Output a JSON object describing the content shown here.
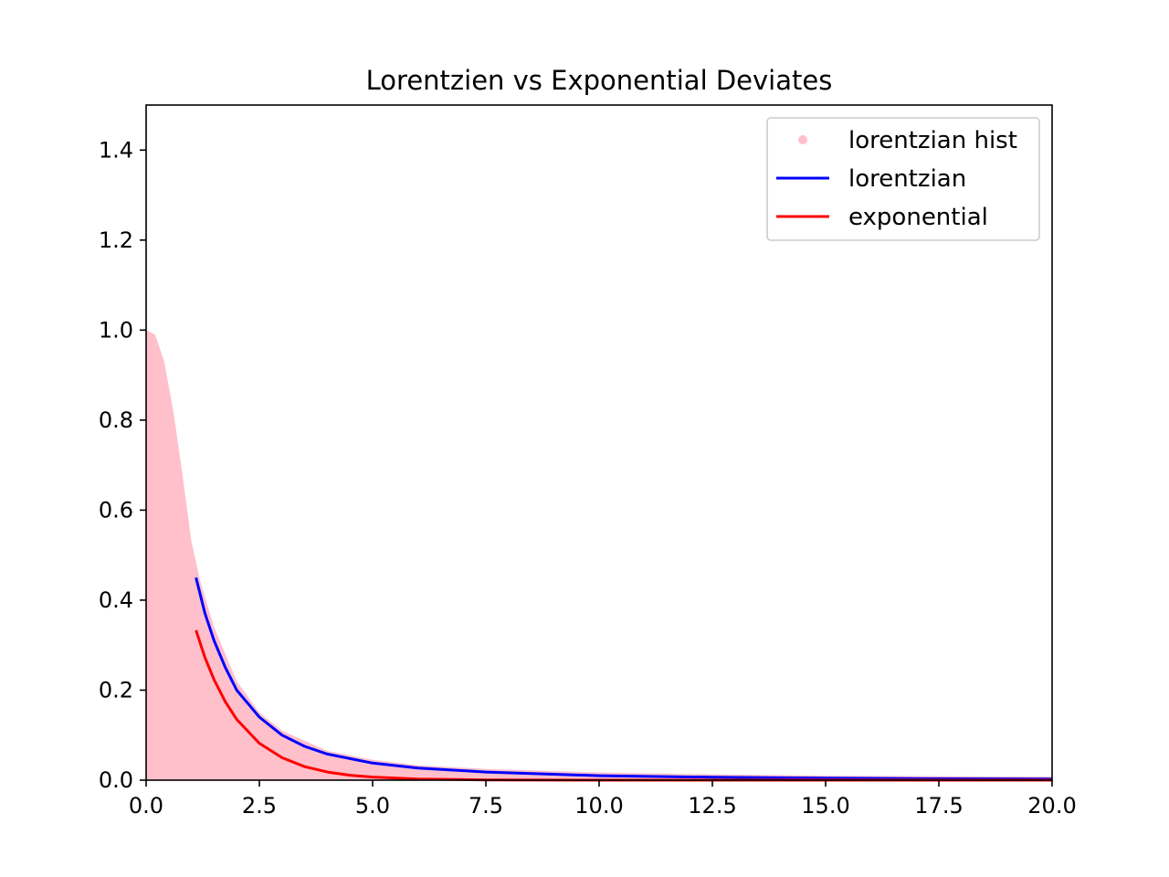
{
  "chart_data": {
    "type": "line",
    "title": "Lorentzien vs Exponential Deviates",
    "xlabel": "",
    "ylabel": "",
    "xlim": [
      0,
      20
    ],
    "ylim": [
      0,
      1.5
    ],
    "xticks": [
      0,
      2.5,
      5,
      7.5,
      10,
      12.5,
      15,
      17.5,
      20
    ],
    "xtick_labels": [
      "0.0",
      "2.5",
      "5.0",
      "7.5",
      "10.0",
      "12.5",
      "15.0",
      "17.5",
      "20.0"
    ],
    "yticks": [
      0,
      0.2,
      0.4,
      0.6,
      0.8,
      1.0,
      1.2,
      1.4
    ],
    "ytick_labels": [
      "0.0",
      "0.2",
      "0.4",
      "0.6",
      "0.8",
      "1.0",
      "1.2",
      "1.4"
    ],
    "grid": false,
    "legend_position": "top-right",
    "series": [
      {
        "name": "lorentzian hist",
        "kind": "filled-histogram",
        "color": "#ffc0cb",
        "x": [
          0,
          0.2,
          0.4,
          0.6,
          0.8,
          1.0,
          1.2,
          1.5,
          2.0,
          2.5,
          3.0,
          4.0,
          5.0,
          6.0,
          7.5,
          10.0,
          12.5,
          15.0,
          17.5,
          20.0
        ],
        "y": [
          1.0,
          0.99,
          0.93,
          0.82,
          0.68,
          0.53,
          0.44,
          0.34,
          0.22,
          0.15,
          0.11,
          0.065,
          0.045,
          0.033,
          0.025,
          0.017,
          0.013,
          0.01,
          0.009,
          0.008
        ]
      },
      {
        "name": "lorentzian",
        "kind": "line",
        "color": "#0000ff",
        "x": [
          1.1,
          1.3,
          1.5,
          1.75,
          2.0,
          2.25,
          2.5,
          3.0,
          3.5,
          4.0,
          5.0,
          6.0,
          7.5,
          10.0,
          12.5,
          15.0,
          17.5,
          20.0
        ],
        "y": [
          0.45,
          0.37,
          0.31,
          0.25,
          0.2,
          0.17,
          0.14,
          0.1,
          0.075,
          0.058,
          0.038,
          0.027,
          0.018,
          0.01,
          0.0065,
          0.0045,
          0.0033,
          0.0025
        ]
      },
      {
        "name": "exponential",
        "kind": "line",
        "color": "#ff0000",
        "x": [
          1.1,
          1.3,
          1.5,
          1.75,
          2.0,
          2.5,
          3.0,
          3.5,
          4.0,
          4.5,
          5.0,
          6.0,
          7.5,
          10.0,
          15.0,
          20.0
        ],
        "y": [
          0.333,
          0.272,
          0.223,
          0.174,
          0.135,
          0.082,
          0.05,
          0.03,
          0.018,
          0.011,
          0.007,
          0.0025,
          0.0006,
          0.0,
          0.0,
          0.0
        ]
      }
    ]
  }
}
